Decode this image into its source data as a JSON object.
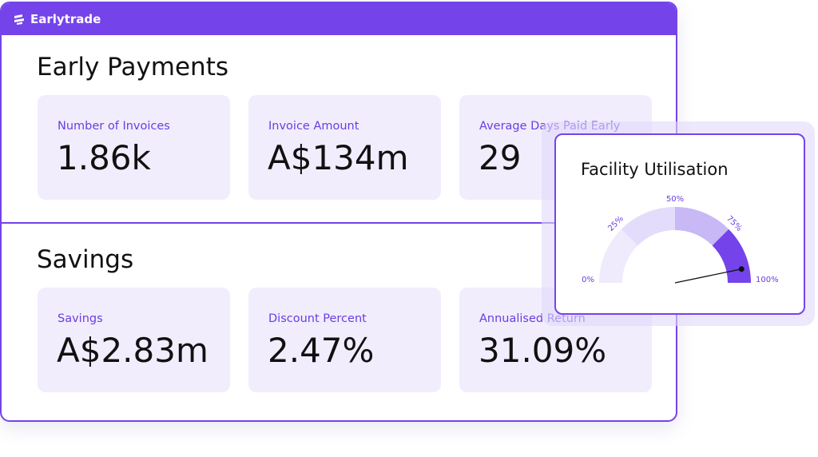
{
  "header": {
    "brand": "Earlytrade"
  },
  "sections": [
    {
      "title": "Early Payments",
      "cards": [
        {
          "label": "Number of Invoices",
          "value": "1.86k"
        },
        {
          "label": "Invoice Amount",
          "value": "A$134m"
        },
        {
          "label": "Average Days Paid Early",
          "value": "29"
        }
      ]
    },
    {
      "title": "Savings",
      "cards": [
        {
          "label": "Savings",
          "value": "A$2.83m"
        },
        {
          "label": "Discount Percent",
          "value": "2.47%"
        },
        {
          "label": "Annualised Return",
          "value": "31.09%"
        }
      ]
    }
  ],
  "gauge": {
    "title": "Facility Utilisation",
    "ticks": [
      {
        "value": 0,
        "label": "0%"
      },
      {
        "value": 25,
        "label": "25%"
      },
      {
        "value": 50,
        "label": "50%"
      },
      {
        "value": 75,
        "label": "75%"
      },
      {
        "value": 100,
        "label": "100%"
      }
    ],
    "colors": [
      "#efebfd",
      "#e3dcfb",
      "#c8b8f6",
      "#7444ea"
    ],
    "value": 93.5
  }
}
